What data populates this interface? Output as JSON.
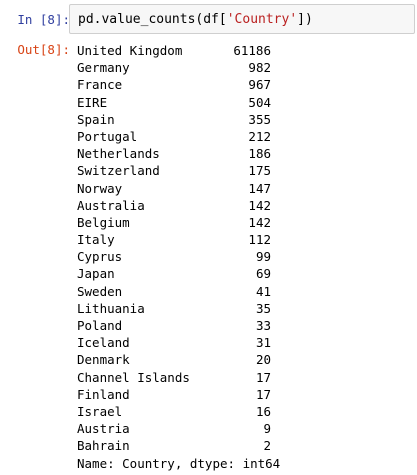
{
  "input": {
    "prompt": "In [8]:",
    "code_prefix": "pd.value_counts(df[",
    "code_string": "'Country'",
    "code_suffix": "])"
  },
  "output": {
    "prompt": "Out[8]:",
    "rows": [
      {
        "country": "United Kingdom",
        "count": "61186"
      },
      {
        "country": "Germany",
        "count": "982"
      },
      {
        "country": "France",
        "count": "967"
      },
      {
        "country": "EIRE",
        "count": "504"
      },
      {
        "country": "Spain",
        "count": "355"
      },
      {
        "country": "Portugal",
        "count": "212"
      },
      {
        "country": "Netherlands",
        "count": "186"
      },
      {
        "country": "Switzerland",
        "count": "175"
      },
      {
        "country": "Norway",
        "count": "147"
      },
      {
        "country": "Australia",
        "count": "142"
      },
      {
        "country": "Belgium",
        "count": "142"
      },
      {
        "country": "Italy",
        "count": "112"
      },
      {
        "country": "Cyprus",
        "count": "99"
      },
      {
        "country": "Japan",
        "count": "69"
      },
      {
        "country": "Sweden",
        "count": "41"
      },
      {
        "country": "Lithuania",
        "count": "35"
      },
      {
        "country": "Poland",
        "count": "33"
      },
      {
        "country": "Iceland",
        "count": "31"
      },
      {
        "country": "Denmark",
        "count": "20"
      },
      {
        "country": "Channel Islands",
        "count": "17"
      },
      {
        "country": "Finland",
        "count": "17"
      },
      {
        "country": "Israel",
        "count": "16"
      },
      {
        "country": "Austria",
        "count": "9"
      },
      {
        "country": "Bahrain",
        "count": "2"
      }
    ],
    "footer": "Name: Country, dtype: int64"
  }
}
